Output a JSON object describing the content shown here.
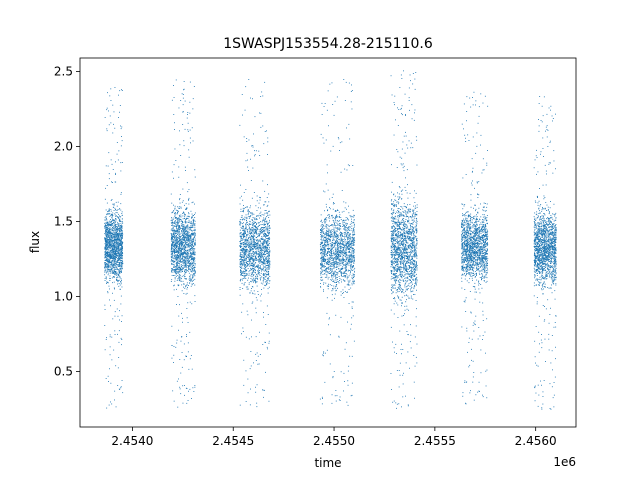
{
  "chart_data": {
    "type": "scatter",
    "title": "1SWASPJ153554.28-215110.6",
    "xlabel": "time",
    "ylabel": "flux",
    "x_offset_label": "1e6",
    "xlim": [
      2.45374,
      2.4562
    ],
    "ylim": [
      0.13,
      2.59
    ],
    "x_ticks": [
      2.454,
      2.4545,
      2.455,
      2.4555,
      2.456
    ],
    "x_tick_labels": [
      "2.4540",
      "2.4545",
      "2.4550",
      "2.4555",
      "2.4560"
    ],
    "y_ticks": [
      0.5,
      1.0,
      1.5,
      2.0,
      2.5
    ],
    "y_tick_labels": [
      "0.5",
      "1.0",
      "1.5",
      "2.0",
      "2.5"
    ],
    "grid": false,
    "marker_color": "#1f77b4",
    "series": [
      {
        "clusters": [
          {
            "x_range": [
              2.45386,
              2.45395
            ],
            "core_flux": [
              1.05,
              1.62
            ],
            "outer_flux": [
              0.25,
              2.41
            ]
          },
          {
            "x_range": [
              2.45419,
              2.45431
            ],
            "core_flux": [
              1.02,
              1.65
            ],
            "outer_flux": [
              0.26,
              2.45
            ]
          },
          {
            "x_range": [
              2.45453,
              2.45468
            ],
            "core_flux": [
              1.0,
              1.66
            ],
            "outer_flux": [
              0.24,
              2.45
            ]
          },
          {
            "x_range": [
              2.45493,
              2.4551
            ],
            "core_flux": [
              1.0,
              1.62
            ],
            "outer_flux": [
              0.27,
              2.45
            ]
          },
          {
            "x_range": [
              2.45528,
              2.45541
            ],
            "core_flux": [
              0.92,
              1.73
            ],
            "outer_flux": [
              0.23,
              2.51
            ]
          },
          {
            "x_range": [
              2.45563,
              2.45576
            ],
            "core_flux": [
              1.05,
              1.62
            ],
            "outer_flux": [
              0.25,
              2.42
            ]
          },
          {
            "x_range": [
              2.45599,
              2.4561
            ],
            "core_flux": [
              1.03,
              1.63
            ],
            "outer_flux": [
              0.25,
              2.35
            ]
          }
        ]
      }
    ]
  }
}
